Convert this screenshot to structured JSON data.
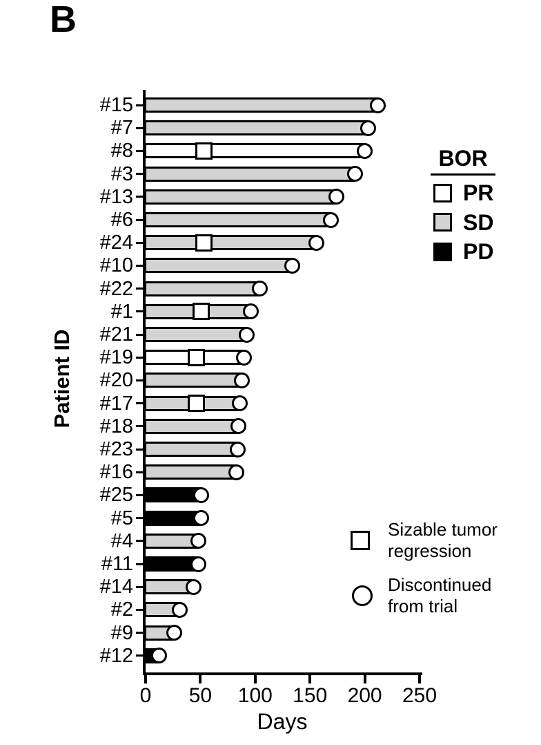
{
  "panel_label": "B",
  "chart_data": {
    "type": "bar",
    "orientation": "horizontal",
    "xlabel": "Days",
    "ylabel": "Patient ID",
    "xlim": [
      0,
      250
    ],
    "xticks": [
      0,
      50,
      100,
      150,
      200,
      250
    ],
    "grid": false,
    "bar_fill_by_bor": {
      "PR": "#ffffff",
      "SD": "#d3d3d3",
      "PD": "#000000"
    },
    "marker_meanings": {
      "square": "Sizable tumor regression",
      "circle": "Discontinued from trial"
    },
    "patients": [
      {
        "id": "#15",
        "days": 212,
        "bor": "SD",
        "discontinued": true
      },
      {
        "id": "#7",
        "days": 203,
        "bor": "SD",
        "discontinued": true
      },
      {
        "id": "#8",
        "days": 200,
        "bor": "PR",
        "discontinued": true,
        "regression_day": 53
      },
      {
        "id": "#3",
        "days": 191,
        "bor": "SD",
        "discontinued": true
      },
      {
        "id": "#13",
        "days": 174,
        "bor": "SD",
        "discontinued": true
      },
      {
        "id": "#6",
        "days": 169,
        "bor": "SD",
        "discontinued": true
      },
      {
        "id": "#24",
        "days": 156,
        "bor": "SD",
        "discontinued": true,
        "regression_day": 53
      },
      {
        "id": "#10",
        "days": 134,
        "bor": "SD",
        "discontinued": true
      },
      {
        "id": "#22",
        "days": 104,
        "bor": "SD",
        "discontinued": true
      },
      {
        "id": "#1",
        "days": 96,
        "bor": "SD",
        "discontinued": true,
        "regression_day": 51
      },
      {
        "id": "#21",
        "days": 92,
        "bor": "SD",
        "discontinued": true
      },
      {
        "id": "#19",
        "days": 90,
        "bor": "PR",
        "discontinued": true,
        "regression_day": 46
      },
      {
        "id": "#20",
        "days": 88,
        "bor": "SD",
        "discontinued": true
      },
      {
        "id": "#17",
        "days": 86,
        "bor": "SD",
        "discontinued": true,
        "regression_day": 46
      },
      {
        "id": "#18",
        "days": 85,
        "bor": "SD",
        "discontinued": true
      },
      {
        "id": "#23",
        "days": 84,
        "bor": "SD",
        "discontinued": true
      },
      {
        "id": "#16",
        "days": 83,
        "bor": "SD",
        "discontinued": true
      },
      {
        "id": "#25",
        "days": 51,
        "bor": "PD",
        "discontinued": true
      },
      {
        "id": "#5",
        "days": 51,
        "bor": "PD",
        "discontinued": true
      },
      {
        "id": "#4",
        "days": 48,
        "bor": "SD",
        "discontinued": true
      },
      {
        "id": "#11",
        "days": 48,
        "bor": "PD",
        "discontinued": true
      },
      {
        "id": "#14",
        "days": 44,
        "bor": "SD",
        "discontinued": true
      },
      {
        "id": "#2",
        "days": 31,
        "bor": "SD",
        "discontinued": true
      },
      {
        "id": "#9",
        "days": 26,
        "bor": "SD",
        "discontinued": true
      },
      {
        "id": "#12",
        "days": 12,
        "bor": "PD",
        "discontinued": true
      }
    ]
  },
  "legend_bor": {
    "title": "BOR",
    "items": [
      {
        "label": "PR",
        "color": "#ffffff"
      },
      {
        "label": "SD",
        "color": "#d3d3d3"
      },
      {
        "label": "PD",
        "color": "#000000"
      }
    ]
  },
  "legend_symbols": {
    "square_label": "Sizable tumor regression",
    "circle_label": "Discontinued from trial"
  }
}
